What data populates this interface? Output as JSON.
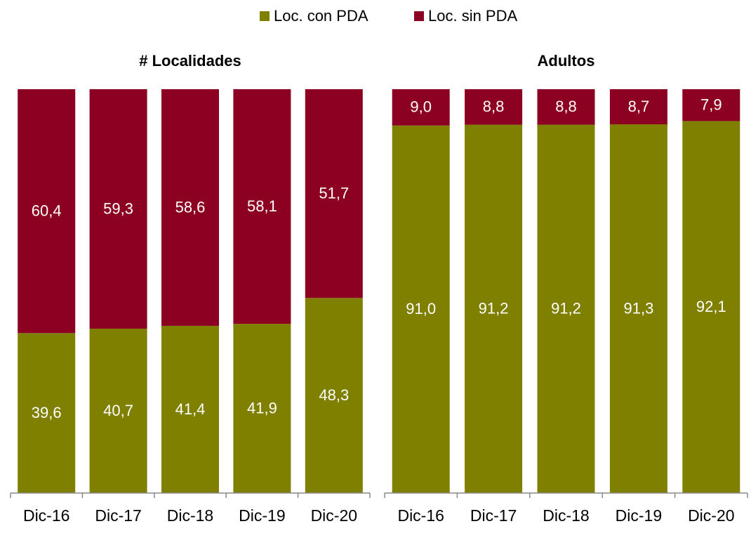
{
  "chart_data": [
    {
      "type": "stacked_bar",
      "title": "# Localidades",
      "categories": [
        "Dic-16",
        "Dic-17",
        "Dic-18",
        "Dic-19",
        "Dic-20"
      ],
      "ylim": [
        0,
        100
      ],
      "series": [
        {
          "name": "Loc. con PDA",
          "color": "#7f7f00",
          "values": [
            39.6,
            40.7,
            41.4,
            41.9,
            48.3
          ],
          "value_labels": [
            "39,6",
            "40,7",
            "41,4",
            "41,9",
            "48,3"
          ]
        },
        {
          "name": "Loc. sin PDA",
          "color": "#8c0021",
          "values": [
            60.4,
            59.3,
            58.6,
            58.1,
            51.7
          ],
          "value_labels": [
            "60,4",
            "59,3",
            "58,6",
            "58,1",
            "51,7"
          ]
        }
      ]
    },
    {
      "type": "stacked_bar",
      "title": "Adultos",
      "categories": [
        "Dic-16",
        "Dic-17",
        "Dic-18",
        "Dic-19",
        "Dic-20"
      ],
      "ylim": [
        0,
        100
      ],
      "series": [
        {
          "color": "#7f7f00",
          "values": [
            91.0,
            91.2,
            91.2,
            91.3,
            92.1
          ],
          "value_labels": [
            "91,0",
            "91,2",
            "91,2",
            "91,3",
            "92,1"
          ]
        },
        {
          "color": "#8c0021",
          "values": [
            9.0,
            8.8,
            8.8,
            8.7,
            7.9
          ],
          "value_labels": [
            "9,0",
            "8,8",
            "8,8",
            "8,7",
            "7,9"
          ]
        }
      ]
    }
  ]
}
